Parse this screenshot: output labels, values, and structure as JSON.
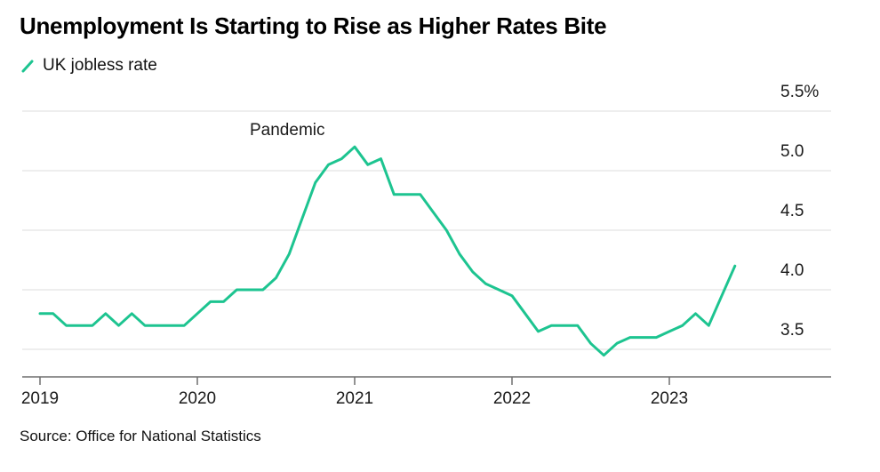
{
  "chart": {
    "title": "Unemployment Is Starting to Rise as Higher Rates Bite",
    "legend": "UK jobless rate",
    "source": "Source: Office for National Statistics",
    "accent_color": "#1dc490",
    "grid_color": "#dcdcdc",
    "axis_color": "#6e6e6e",
    "text_color": "#1a1a1a"
  },
  "chart_data": {
    "type": "line",
    "title": "Unemployment Is Starting to Rise as Higher Rates Bite",
    "series_name": "UK jobless rate",
    "frequency": "monthly",
    "x_start": "2019-01",
    "values": [
      3.8,
      3.8,
      3.7,
      3.7,
      3.7,
      3.8,
      3.7,
      3.8,
      3.7,
      3.7,
      3.7,
      3.7,
      3.8,
      3.9,
      3.9,
      4.0,
      4.0,
      4.0,
      4.1,
      4.3,
      4.6,
      4.9,
      5.05,
      5.1,
      5.2,
      5.05,
      5.1,
      4.8,
      4.8,
      4.8,
      4.65,
      4.5,
      4.3,
      4.15,
      4.05,
      4.0,
      3.95,
      3.8,
      3.65,
      3.7,
      3.7,
      3.7,
      3.55,
      3.45,
      3.55,
      3.6,
      3.6,
      3.6,
      3.65,
      3.7,
      3.8,
      3.7,
      3.95,
      4.2
    ],
    "ylim": [
      3.3,
      5.5
    ],
    "yticks": [
      {
        "label": "5.5%",
        "value": 5.5
      },
      {
        "label": "5.0",
        "value": 5.0
      },
      {
        "label": "4.5",
        "value": 4.5
      },
      {
        "label": "4.0",
        "value": 4.0
      },
      {
        "label": "3.5",
        "value": 3.5
      }
    ],
    "xticks": [
      {
        "label": "2019",
        "month": 0
      },
      {
        "label": "2020",
        "month": 12
      },
      {
        "label": "2021",
        "month": 24
      },
      {
        "label": "2022",
        "month": 36
      },
      {
        "label": "2023",
        "month": 48
      }
    ],
    "annotation": {
      "text": "Pandemic",
      "x_month": 16,
      "y_value": 5.3
    },
    "grid": true,
    "legend_position": "top-left"
  }
}
